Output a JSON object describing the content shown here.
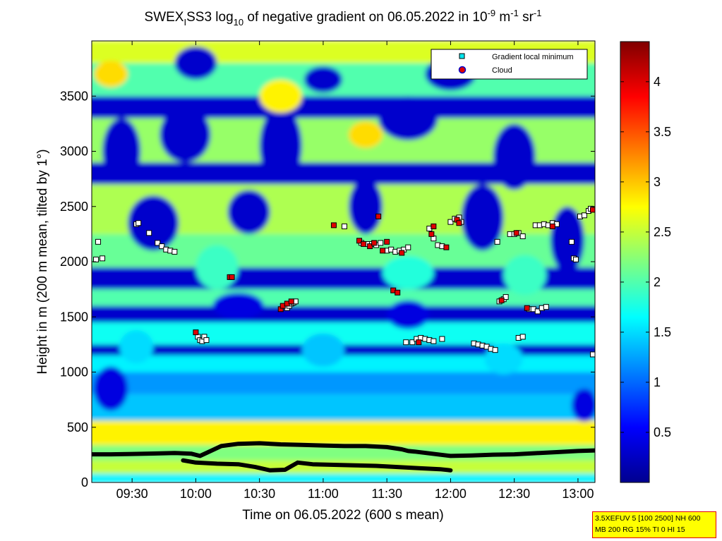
{
  "chart_data": {
    "type": "heatmap",
    "title": {
      "prefix": "SWEX",
      "prefix_sub": "I",
      "main": "SS3 log",
      "main_sub": "10",
      "middle": " of negative gradient on 06.05.2022 in 10",
      "exp1": "-9",
      "unit1": " m",
      "exp2": "-1",
      "unit2": " sr",
      "exp3": "-1"
    },
    "xlabel": "Time on 06.05.2022 (600 s mean)",
    "ylabel": "Height in m (200 m mean, tilted by 1°)",
    "xlim_minutes": [
      551,
      788
    ],
    "ylim": [
      0,
      4000
    ],
    "x_ticks": [
      {
        "label": "09:30",
        "value": 570
      },
      {
        "label": "10:00",
        "value": 600
      },
      {
        "label": "10:30",
        "value": 630
      },
      {
        "label": "11:00",
        "value": 660
      },
      {
        "label": "11:30",
        "value": 690
      },
      {
        "label": "12:00",
        "value": 720
      },
      {
        "label": "12:30",
        "value": 750
      },
      {
        "label": "13:00",
        "value": 780
      }
    ],
    "y_ticks": [
      {
        "label": "0",
        "value": 0
      },
      {
        "label": "500",
        "value": 500
      },
      {
        "label": "1000",
        "value": 1000
      },
      {
        "label": "1500",
        "value": 1500
      },
      {
        "label": "2000",
        "value": 2000
      },
      {
        "label": "2500",
        "value": 2500
      },
      {
        "label": "3000",
        "value": 3000
      },
      {
        "label": "3500",
        "value": 3500
      }
    ],
    "colorbar": {
      "min": 0,
      "max": 4.4,
      "ticks": [
        {
          "label": "0.5",
          "value": 0.5
        },
        {
          "label": "1",
          "value": 1
        },
        {
          "label": "1.5",
          "value": 1.5
        },
        {
          "label": "2",
          "value": 2
        },
        {
          "label": "2.5",
          "value": 2.5
        },
        {
          "label": "3",
          "value": 3
        },
        {
          "label": "3.5",
          "value": 3.5
        },
        {
          "label": "4",
          "value": 4
        }
      ]
    },
    "legend": {
      "placement": "top-right",
      "entries": [
        {
          "label": "Gradient local minimum",
          "marker": "square",
          "color": "#00e5ee"
        },
        {
          "label": "Cloud",
          "marker": "circle",
          "color": "#e00000"
        }
      ]
    },
    "heatmap_bands": [
      {
        "y0": 0,
        "y1": 80,
        "value": 1.6
      },
      {
        "y0": 80,
        "y1": 200,
        "value": 2.5
      },
      {
        "y0": 200,
        "y1": 340,
        "value": 2.2
      },
      {
        "y0": 340,
        "y1": 560,
        "value": 2.8
      },
      {
        "y0": 560,
        "y1": 800,
        "value": 1.4
      },
      {
        "y0": 800,
        "y1": 1000,
        "value": 1.2
      },
      {
        "y0": 1000,
        "y1": 1150,
        "value": 1.6
      },
      {
        "y0": 1150,
        "y1": 1250,
        "value": 0.3
      },
      {
        "y0": 1250,
        "y1": 1450,
        "value": 1.7
      },
      {
        "y0": 1450,
        "y1": 1600,
        "value": 0.3
      },
      {
        "y0": 1600,
        "y1": 1750,
        "value": 2.0
      },
      {
        "y0": 1750,
        "y1": 1950,
        "value": 0.3
      },
      {
        "y0": 1950,
        "y1": 2250,
        "value": 2.1
      },
      {
        "y0": 2250,
        "y1": 2700,
        "value": 2.4
      },
      {
        "y0": 2700,
        "y1": 2900,
        "value": 0.3
      },
      {
        "y0": 2900,
        "y1": 3300,
        "value": 2.3
      },
      {
        "y0": 3300,
        "y1": 3500,
        "value": 0.3
      },
      {
        "y0": 3500,
        "y1": 3800,
        "value": 2.0
      },
      {
        "y0": 3800,
        "y1": 4000,
        "value": 2.6
      }
    ],
    "heatmap_blobs": [
      {
        "t": 565,
        "h": 3000,
        "rt": 9,
        "rh": 300,
        "value": 0.3
      },
      {
        "t": 595,
        "h": 3150,
        "rt": 12,
        "rh": 250,
        "value": 0.3
      },
      {
        "t": 640,
        "h": 3050,
        "rt": 10,
        "rh": 350,
        "value": 0.3
      },
      {
        "t": 700,
        "h": 3300,
        "rt": 14,
        "rh": 200,
        "value": 0.3
      },
      {
        "t": 750,
        "h": 2950,
        "rt": 10,
        "rh": 300,
        "value": 0.3
      },
      {
        "t": 580,
        "h": 2350,
        "rt": 12,
        "rh": 250,
        "value": 0.3
      },
      {
        "t": 625,
        "h": 2450,
        "rt": 10,
        "rh": 200,
        "value": 0.3
      },
      {
        "t": 680,
        "h": 2500,
        "rt": 8,
        "rh": 250,
        "value": 0.3
      },
      {
        "t": 735,
        "h": 2400,
        "rt": 10,
        "rh": 300,
        "value": 0.3
      },
      {
        "t": 775,
        "h": 2200,
        "rt": 8,
        "rh": 300,
        "value": 0.3
      },
      {
        "t": 610,
        "h": 1950,
        "rt": 10,
        "rh": 200,
        "value": 1.9
      },
      {
        "t": 700,
        "h": 1900,
        "rt": 12,
        "rh": 150,
        "value": 1.8
      },
      {
        "t": 755,
        "h": 1880,
        "rt": 10,
        "rh": 180,
        "value": 1.9
      },
      {
        "t": 572,
        "h": 1230,
        "rt": 8,
        "rh": 150,
        "value": 1.5
      },
      {
        "t": 660,
        "h": 1200,
        "rt": 10,
        "rh": 150,
        "value": 1.4
      },
      {
        "t": 745,
        "h": 1120,
        "rt": 9,
        "rh": 140,
        "value": 1.5
      },
      {
        "t": 600,
        "h": 3800,
        "rt": 10,
        "rh": 150,
        "value": 0.3
      },
      {
        "t": 720,
        "h": 3700,
        "rt": 12,
        "rh": 150,
        "value": 0.3
      },
      {
        "t": 660,
        "h": 3650,
        "rt": 9,
        "rh": 120,
        "value": 0.3
      },
      {
        "t": 620,
        "h": 1600,
        "rt": 12,
        "rh": 120,
        "value": 0.4
      },
      {
        "t": 700,
        "h": 1520,
        "rt": 10,
        "rh": 130,
        "value": 0.4
      },
      {
        "t": 560,
        "h": 850,
        "rt": 8,
        "rh": 200,
        "value": 0.4
      },
      {
        "t": 783,
        "h": 700,
        "rt": 6,
        "rh": 150,
        "value": 0.4
      },
      {
        "t": 640,
        "h": 3500,
        "rt": 10,
        "rh": 150,
        "value": 2.8
      },
      {
        "t": 560,
        "h": 3700,
        "rt": 8,
        "rh": 120,
        "value": 2.9
      },
      {
        "t": 680,
        "h": 3150,
        "rt": 8,
        "rh": 120,
        "value": 2.9
      }
    ],
    "series": [
      {
        "name": "Gradient local minimum",
        "points": [
          [
            553,
            2020
          ],
          [
            554,
            2180
          ],
          [
            556,
            2030
          ],
          [
            572,
            2340
          ],
          [
            573,
            2350
          ],
          [
            578,
            2260
          ],
          [
            582,
            2170
          ],
          [
            584,
            2140
          ],
          [
            586,
            2110
          ],
          [
            588,
            2100
          ],
          [
            590,
            2090
          ],
          [
            601,
            1320
          ],
          [
            602,
            1290
          ],
          [
            603,
            1280
          ],
          [
            604,
            1320
          ],
          [
            605,
            1290
          ],
          [
            643,
            1580
          ],
          [
            644,
            1600
          ],
          [
            645,
            1620
          ],
          [
            646,
            1630
          ],
          [
            647,
            1640
          ],
          [
            670,
            2320
          ],
          [
            678,
            2170
          ],
          [
            681,
            2160
          ],
          [
            683,
            2160
          ],
          [
            685,
            2150
          ],
          [
            687,
            2170
          ],
          [
            690,
            2100
          ],
          [
            692,
            2110
          ],
          [
            694,
            2090
          ],
          [
            696,
            2100
          ],
          [
            698,
            2110
          ],
          [
            700,
            2130
          ],
          [
            699,
            1270
          ],
          [
            702,
            1270
          ],
          [
            704,
            1300
          ],
          [
            706,
            1310
          ],
          [
            708,
            1300
          ],
          [
            710,
            1290
          ],
          [
            712,
            1280
          ],
          [
            716,
            1300
          ],
          [
            710,
            2300
          ],
          [
            712,
            2210
          ],
          [
            714,
            2150
          ],
          [
            716,
            2140
          ],
          [
            720,
            2360
          ],
          [
            722,
            2390
          ],
          [
            724,
            2400
          ],
          [
            725,
            2360
          ],
          [
            731,
            1260
          ],
          [
            733,
            1250
          ],
          [
            735,
            1240
          ],
          [
            737,
            1230
          ],
          [
            739,
            1210
          ],
          [
            741,
            1200
          ],
          [
            742,
            2180
          ],
          [
            743,
            1640
          ],
          [
            745,
            1660
          ],
          [
            746,
            1680
          ],
          [
            748,
            2250
          ],
          [
            750,
            2250
          ],
          [
            752,
            2260
          ],
          [
            754,
            2230
          ],
          [
            752,
            1310
          ],
          [
            754,
            1320
          ],
          [
            757,
            1570
          ],
          [
            759,
            1570
          ],
          [
            761,
            1550
          ],
          [
            763,
            1580
          ],
          [
            765,
            1590
          ],
          [
            760,
            2330
          ],
          [
            762,
            2330
          ],
          [
            764,
            2340
          ],
          [
            766,
            2330
          ],
          [
            768,
            2350
          ],
          [
            770,
            2340
          ],
          [
            777,
            2180
          ],
          [
            778,
            2030
          ],
          [
            779,
            2020
          ],
          [
            781,
            2410
          ],
          [
            783,
            2420
          ],
          [
            785,
            2460
          ],
          [
            786,
            2480
          ],
          [
            787,
            1160
          ]
        ]
      },
      {
        "name": "Cloud",
        "points": [
          [
            600,
            1360
          ],
          [
            616,
            1860
          ],
          [
            617,
            1860
          ],
          [
            640,
            1570
          ],
          [
            641,
            1600
          ],
          [
            643,
            1620
          ],
          [
            645,
            1640
          ],
          [
            665,
            2330
          ],
          [
            677,
            2190
          ],
          [
            679,
            2160
          ],
          [
            682,
            2140
          ],
          [
            684,
            2170
          ],
          [
            686,
            2410
          ],
          [
            688,
            2100
          ],
          [
            690,
            2180
          ],
          [
            693,
            1740
          ],
          [
            695,
            1720
          ],
          [
            697,
            2080
          ],
          [
            705,
            1270
          ],
          [
            711,
            2250
          ],
          [
            712,
            2320
          ],
          [
            718,
            2130
          ],
          [
            723,
            2380
          ],
          [
            724,
            2350
          ],
          [
            744,
            1650
          ],
          [
            751,
            2260
          ],
          [
            756,
            1580
          ],
          [
            768,
            2320
          ],
          [
            787,
            2470
          ]
        ]
      }
    ],
    "lines": [
      {
        "name": "lower",
        "points": [
          [
            551,
            255
          ],
          [
            560,
            255
          ],
          [
            570,
            258
          ],
          [
            580,
            262
          ],
          [
            590,
            267
          ],
          [
            598,
            260
          ],
          [
            602,
            240
          ],
          [
            612,
            330
          ],
          [
            620,
            350
          ],
          [
            630,
            355
          ],
          [
            640,
            345
          ],
          [
            650,
            340
          ],
          [
            660,
            335
          ],
          [
            670,
            330
          ],
          [
            680,
            330
          ],
          [
            690,
            320
          ],
          [
            697,
            300
          ],
          [
            700,
            285
          ],
          [
            703,
            280
          ],
          [
            720,
            240
          ],
          [
            730,
            245
          ],
          [
            740,
            252
          ],
          [
            750,
            255
          ],
          [
            760,
            265
          ],
          [
            770,
            275
          ],
          [
            780,
            285
          ],
          [
            788,
            290
          ]
        ]
      },
      {
        "name": "upper",
        "points": [
          [
            594,
            200
          ],
          [
            600,
            180
          ],
          [
            610,
            170
          ],
          [
            620,
            165
          ],
          [
            628,
            140
          ],
          [
            635,
            110
          ],
          [
            642,
            115
          ],
          [
            648,
            180
          ],
          [
            655,
            165
          ],
          [
            665,
            160
          ],
          [
            675,
            155
          ],
          [
            685,
            150
          ],
          [
            695,
            140
          ],
          [
            705,
            130
          ],
          [
            715,
            120
          ],
          [
            720,
            110
          ]
        ]
      }
    ]
  },
  "settings_box": {
    "line1": "3.5XEFUV 5 [100 2500] NH 600",
    "line2": "MB 200 RG 15% TI 0 HI 15"
  },
  "colors": {
    "dark_blue": "#00008f",
    "cyan": "#00ffff",
    "yellow": "#ffff00",
    "dark_red": "#800000",
    "square_fill": "#ffffff",
    "cloud_fill": "#e00000",
    "line_color": "#000000"
  }
}
